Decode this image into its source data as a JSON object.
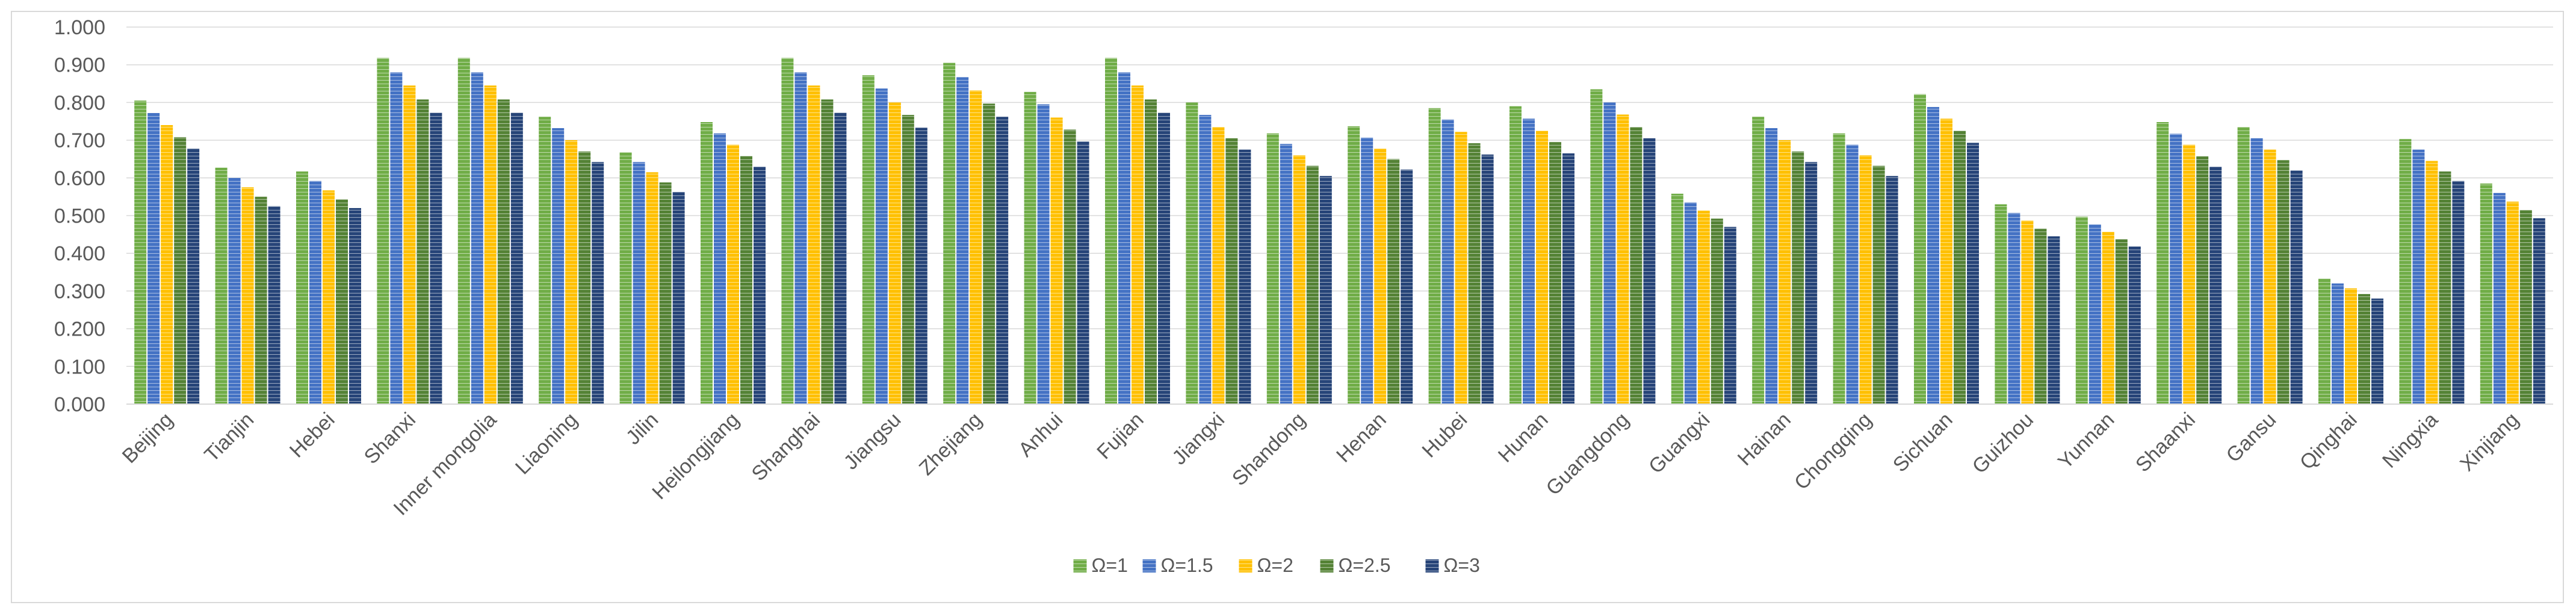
{
  "chart_data": {
    "type": "bar",
    "title": "",
    "xlabel": "",
    "ylabel": "",
    "ylim": [
      0,
      1
    ],
    "yticks": [
      "0.000",
      "0.100",
      "0.200",
      "0.300",
      "0.400",
      "0.500",
      "0.600",
      "0.700",
      "0.800",
      "0.900",
      "1.000"
    ],
    "grid": true,
    "legend_position": "bottom",
    "categories": [
      "Beijing",
      "Tianjin",
      "Hebei",
      "Shanxi",
      "Inner mongolia",
      "Liaoning",
      "Jilin",
      "Heilongjiang",
      "Shanghai",
      "Jiangsu",
      "Zhejiang",
      "Anhui",
      "Fujian",
      "Jiangxi",
      "Shandong",
      "Henan",
      "Hubei",
      "Hunan",
      "Guangdong",
      "Guangxi",
      "Hainan",
      "Chongqing",
      "Sichuan",
      "Guizhou",
      "Yunnan",
      "Shaanxi",
      "Gansu",
      "Qinghai",
      "Ningxia",
      "Xinjiang"
    ],
    "series": [
      {
        "name": "Ω=1",
        "color": "#70ad47",
        "values": [
          0.805,
          0.627,
          0.617,
          0.918,
          0.918,
          0.762,
          0.668,
          0.748,
          0.918,
          0.872,
          0.905,
          0.828,
          0.918,
          0.8,
          0.718,
          0.737,
          0.785,
          0.79,
          0.835,
          0.558,
          0.762,
          0.718,
          0.822,
          0.53,
          0.497,
          0.748,
          0.735,
          0.333,
          0.703,
          0.585
        ]
      },
      {
        "name": "Ω=1.5",
        "color": "#4472c4",
        "values": [
          0.772,
          0.6,
          0.592,
          0.88,
          0.88,
          0.732,
          0.642,
          0.718,
          0.88,
          0.837,
          0.867,
          0.795,
          0.88,
          0.767,
          0.69,
          0.707,
          0.755,
          0.757,
          0.8,
          0.535,
          0.732,
          0.688,
          0.788,
          0.507,
          0.477,
          0.717,
          0.705,
          0.32,
          0.675,
          0.56
        ]
      },
      {
        "name": "Ω=2",
        "color": "#ffc000",
        "values": [
          0.74,
          0.575,
          0.567,
          0.845,
          0.845,
          0.7,
          0.615,
          0.688,
          0.845,
          0.8,
          0.832,
          0.76,
          0.845,
          0.735,
          0.66,
          0.678,
          0.722,
          0.725,
          0.768,
          0.513,
          0.7,
          0.66,
          0.757,
          0.487,
          0.457,
          0.688,
          0.675,
          0.307,
          0.645,
          0.537
        ]
      },
      {
        "name": "Ω=2.5",
        "color": "#548235",
        "values": [
          0.708,
          0.55,
          0.543,
          0.808,
          0.808,
          0.67,
          0.588,
          0.658,
          0.808,
          0.767,
          0.797,
          0.728,
          0.808,
          0.705,
          0.632,
          0.65,
          0.692,
          0.695,
          0.735,
          0.492,
          0.67,
          0.632,
          0.725,
          0.465,
          0.437,
          0.657,
          0.647,
          0.292,
          0.617,
          0.515
        ]
      },
      {
        "name": "Ω=3",
        "color": "#264478",
        "values": [
          0.678,
          0.525,
          0.52,
          0.773,
          0.773,
          0.642,
          0.563,
          0.63,
          0.773,
          0.733,
          0.762,
          0.697,
          0.773,
          0.675,
          0.605,
          0.622,
          0.662,
          0.665,
          0.705,
          0.47,
          0.642,
          0.605,
          0.693,
          0.445,
          0.418,
          0.63,
          0.62,
          0.28,
          0.592,
          0.493
        ]
      }
    ]
  }
}
